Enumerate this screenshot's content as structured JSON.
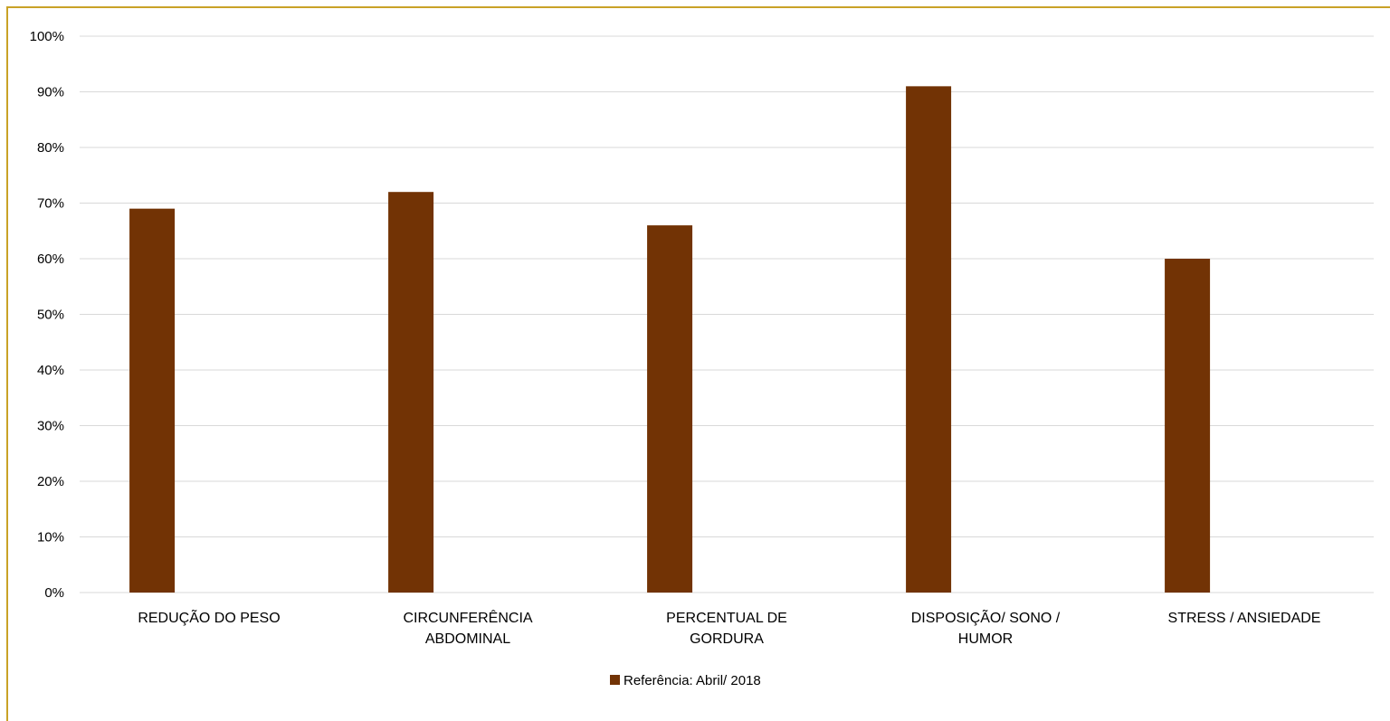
{
  "chart_data": {
    "type": "bar",
    "categories": [
      [
        "REDUÇÃO DO PESO"
      ],
      [
        "CIRCUNFERÊNCIA",
        "ABDOMINAL"
      ],
      [
        "PERCENTUAL DE",
        "GORDURA"
      ],
      [
        "DISPOSIÇÃO/ SONO /",
        "HUMOR"
      ],
      [
        "STRESS / ANSIEDADE"
      ]
    ],
    "series": [
      {
        "name": "Referência: Abril/ 2018",
        "values": [
          69,
          72,
          66,
          91,
          60
        ],
        "color": "#723305"
      }
    ],
    "y_ticks": [
      "0%",
      "10%",
      "20%",
      "30%",
      "40%",
      "50%",
      "60%",
      "70%",
      "80%",
      "90%",
      "100%"
    ],
    "ylim": [
      0,
      100
    ],
    "grid": true,
    "legend_position": "bottom",
    "gridline_color": "#d9d9d9",
    "frame_color": "#c9a227"
  }
}
